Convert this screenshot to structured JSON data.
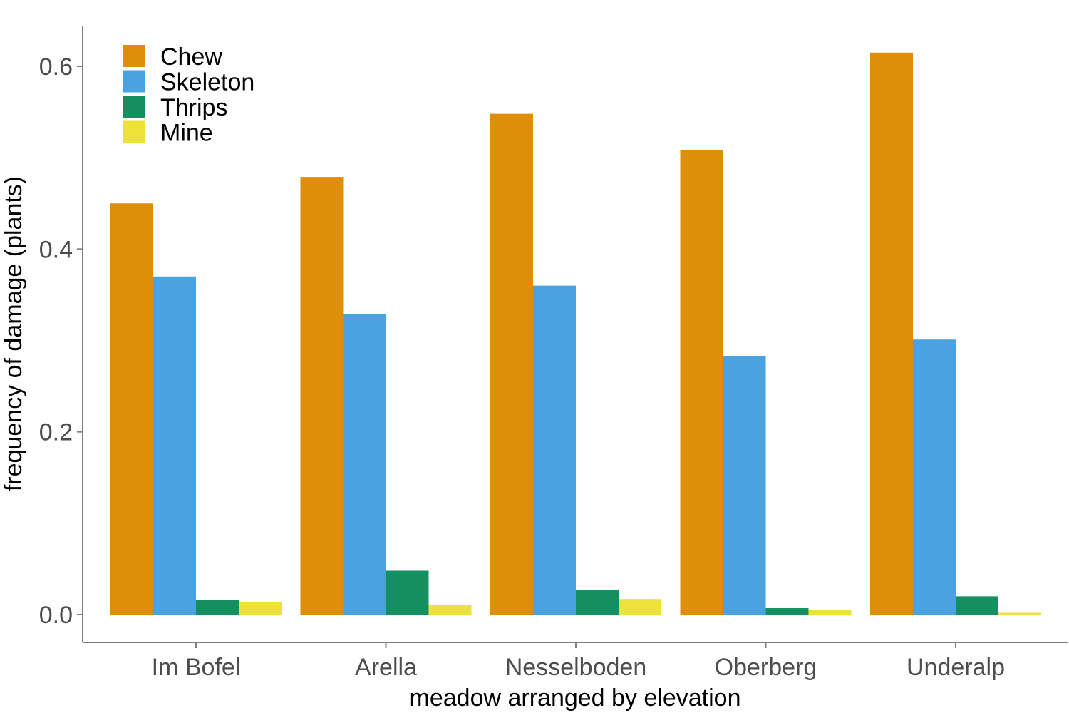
{
  "chart_data": {
    "type": "bar",
    "title": "",
    "xlabel": "meadow arranged by elevation",
    "ylabel": "frequency of damage (plants)",
    "categories": [
      "Im Bofel",
      "Arella",
      "Nesselboden",
      "Oberberg",
      "Underalp"
    ],
    "series": [
      {
        "name": "Chew",
        "color": "#DF8E0B",
        "values": [
          0.45,
          0.479,
          0.548,
          0.508,
          0.615
        ]
      },
      {
        "name": "Skeleton",
        "color": "#4AA3E0",
        "values": [
          0.37,
          0.329,
          0.36,
          0.283,
          0.301
        ]
      },
      {
        "name": "Thrips",
        "color": "#168F60",
        "values": [
          0.016,
          0.048,
          0.027,
          0.007,
          0.02
        ]
      },
      {
        "name": "Mine",
        "color": "#EDE23A",
        "values": [
          0.014,
          0.011,
          0.017,
          0.005,
          0.002
        ]
      }
    ],
    "ylim": [
      -0.03,
      0.645
    ],
    "yticks": [
      0.0,
      0.2,
      0.4,
      0.6
    ],
    "ytick_labels": [
      "0.0",
      "0.2",
      "0.4",
      "0.6"
    ],
    "grid": false,
    "legend_position": "top-left"
  }
}
